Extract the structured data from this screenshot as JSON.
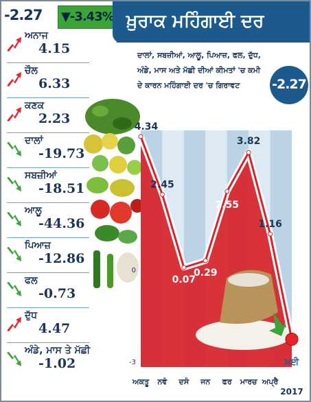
{
  "header": {
    "cpi_value": "-2.27",
    "cpi_change": "▼-3.43%",
    "title": "ਖ਼ੁਰਾਕ ਮਹਿੰਗਾਈ ਦਰ"
  },
  "subtitle": {
    "line1": "ਦਾਲਾਂ, ਸਬਜ਼ੀਆਂ, ਆਲੂ, ਪਿਆਜ਼, ਫਲ, ਦੁੱਧ,",
    "line2": "ਅੰਡੇ, ਮਾਸ ਅਤੇ ਮੱਛੀ ਦੀਆਂ ਕੀਮਤਾਂ 'ਚ ਕਮੀ",
    "line3": "ਦੇ ਕਾਰਨ ਮਹਿੰਗਾਈ ਦਰ 'ਚ ਗਿਰਾਵਟ"
  },
  "badge": "-2.27",
  "items": [
    {
      "name": "ਅਨਾਜ",
      "value": "4.15",
      "trend": "up",
      "icon": "red-up-arrow-icon"
    },
    {
      "name": "ਚੌਲ",
      "value": "6.33",
      "trend": "up",
      "icon": "red-up-arrow-icon"
    },
    {
      "name": "ਕਣਕ",
      "value": "2.23",
      "trend": "up",
      "icon": "red-up-arrow-icon"
    },
    {
      "name": "ਦਾਲਾਂ",
      "value": "-19.73",
      "trend": "down",
      "icon": "green-down-arrow-icon"
    },
    {
      "name": "ਸਬਜ਼ੀਆਂ",
      "value": "-18.51",
      "trend": "down",
      "icon": "green-down-arrow-icon"
    },
    {
      "name": "ਆਲੂ",
      "value": "-44.36",
      "trend": "down",
      "icon": "green-down-arrow-icon"
    },
    {
      "name": "ਪਿਆਜ਼",
      "value": "-12.86",
      "trend": "down",
      "icon": "green-down-arrow-icon"
    },
    {
      "name": "ਫਲ",
      "value": "-0.73",
      "trend": "down",
      "icon": "green-down-arrow-icon"
    },
    {
      "name": "ਦੁੱਧ",
      "value": "4.47",
      "trend": "up",
      "icon": "red-up-arrow-icon"
    },
    {
      "name": "ਅੰਡੇ, ਮਾਸ ਤੇ ਮੱਛੀ",
      "value": "-1.02",
      "trend": "down",
      "icon": "green-down-arrow-icon"
    }
  ],
  "colors": {
    "up": "#e8232a",
    "down": "#3aa639",
    "navy": "#1c3557",
    "blue": "#1c5a8e",
    "area_red": "#d8232a"
  },
  "chart_data": {
    "type": "area",
    "categories": [
      "ਅਕਤੂ",
      "ਨਵੰ",
      "ਦਸੰ",
      "ਜਨ",
      "ਫਰ",
      "ਮਾਰਚ",
      "ਅਪ੍ਰੈ",
      "ਮਈ"
    ],
    "values": [
      4.34,
      2.45,
      0.07,
      0.29,
      2.55,
      3.82,
      1.16,
      -2.27
    ],
    "data_labels": [
      "4.34",
      "2.45",
      "0.07",
      "0.29",
      "2.55",
      "3.82",
      "1.16",
      ""
    ],
    "yticks": [
      "0",
      "-3"
    ],
    "ylim": [
      -3,
      4.8
    ],
    "year_label": "2017",
    "highlight_last": true
  }
}
